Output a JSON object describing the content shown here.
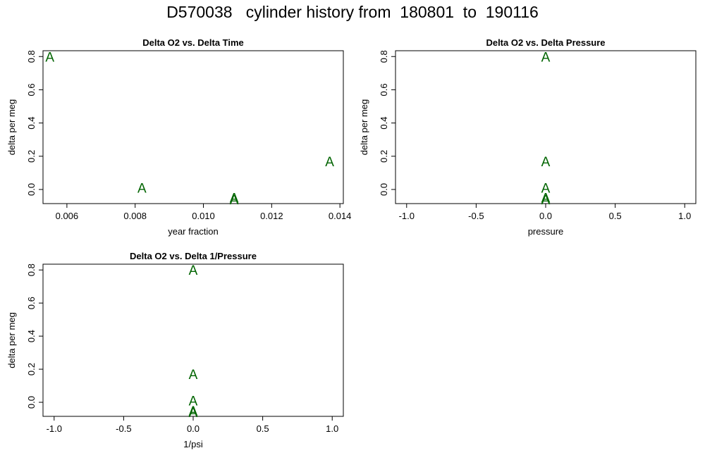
{
  "title": "D570038   cylinder history from  180801  to  190116",
  "marker_color": "#006400",
  "chart_data": [
    {
      "type": "scatter",
      "title": "Delta O2 vs. Delta Time",
      "xlabel": "year fraction",
      "ylabel": "delta per meg",
      "xlim": [
        0.0053,
        0.0141
      ],
      "ylim": [
        -0.085,
        0.835
      ],
      "xticks": [
        0.006,
        0.008,
        0.01,
        0.012,
        0.014
      ],
      "xtick_labels": [
        "0.006",
        "0.008",
        "0.010",
        "0.012",
        "0.014"
      ],
      "yticks": [
        0.0,
        0.2,
        0.4,
        0.6,
        0.8
      ],
      "ytick_labels": [
        "0.0",
        "0.2",
        "0.4",
        "0.6",
        "0.8"
      ],
      "marker": "A",
      "points": [
        {
          "x": 0.0055,
          "y": 0.8
        },
        {
          "x": 0.0082,
          "y": 0.01
        },
        {
          "x": 0.0109,
          "y": -0.05
        },
        {
          "x": 0.0109,
          "y": -0.06
        },
        {
          "x": 0.0137,
          "y": 0.17
        }
      ]
    },
    {
      "type": "scatter",
      "title": "Delta O2 vs. Delta Pressure",
      "xlabel": "pressure",
      "ylabel": "delta per meg",
      "xlim": [
        -1.08,
        1.08
      ],
      "ylim": [
        -0.085,
        0.835
      ],
      "xticks": [
        -1.0,
        -0.5,
        0.0,
        0.5,
        1.0
      ],
      "xtick_labels": [
        "-1.0",
        "-0.5",
        "0.0",
        "0.5",
        "1.0"
      ],
      "yticks": [
        0.0,
        0.2,
        0.4,
        0.6,
        0.8
      ],
      "ytick_labels": [
        "0.0",
        "0.2",
        "0.4",
        "0.6",
        "0.8"
      ],
      "marker": "A",
      "points": [
        {
          "x": 0.0,
          "y": 0.8
        },
        {
          "x": 0.0,
          "y": 0.17
        },
        {
          "x": 0.0,
          "y": 0.01
        },
        {
          "x": 0.0,
          "y": -0.05
        },
        {
          "x": 0.0,
          "y": -0.06
        }
      ]
    },
    {
      "type": "scatter",
      "title": "Delta O2 vs. Delta 1/Pressure",
      "xlabel": "1/psi",
      "ylabel": "delta per meg",
      "xlim": [
        -1.08,
        1.08
      ],
      "ylim": [
        -0.085,
        0.835
      ],
      "xticks": [
        -1.0,
        -0.5,
        0.0,
        0.5,
        1.0
      ],
      "xtick_labels": [
        "-1.0",
        "-0.5",
        "0.0",
        "0.5",
        "1.0"
      ],
      "yticks": [
        0.0,
        0.2,
        0.4,
        0.6,
        0.8
      ],
      "ytick_labels": [
        "0.0",
        "0.2",
        "0.4",
        "0.6",
        "0.8"
      ],
      "marker": "A",
      "points": [
        {
          "x": 0.0,
          "y": 0.8
        },
        {
          "x": 0.0,
          "y": 0.17
        },
        {
          "x": 0.0,
          "y": 0.01
        },
        {
          "x": 0.0,
          "y": -0.05
        },
        {
          "x": 0.0,
          "y": -0.06
        }
      ]
    }
  ]
}
